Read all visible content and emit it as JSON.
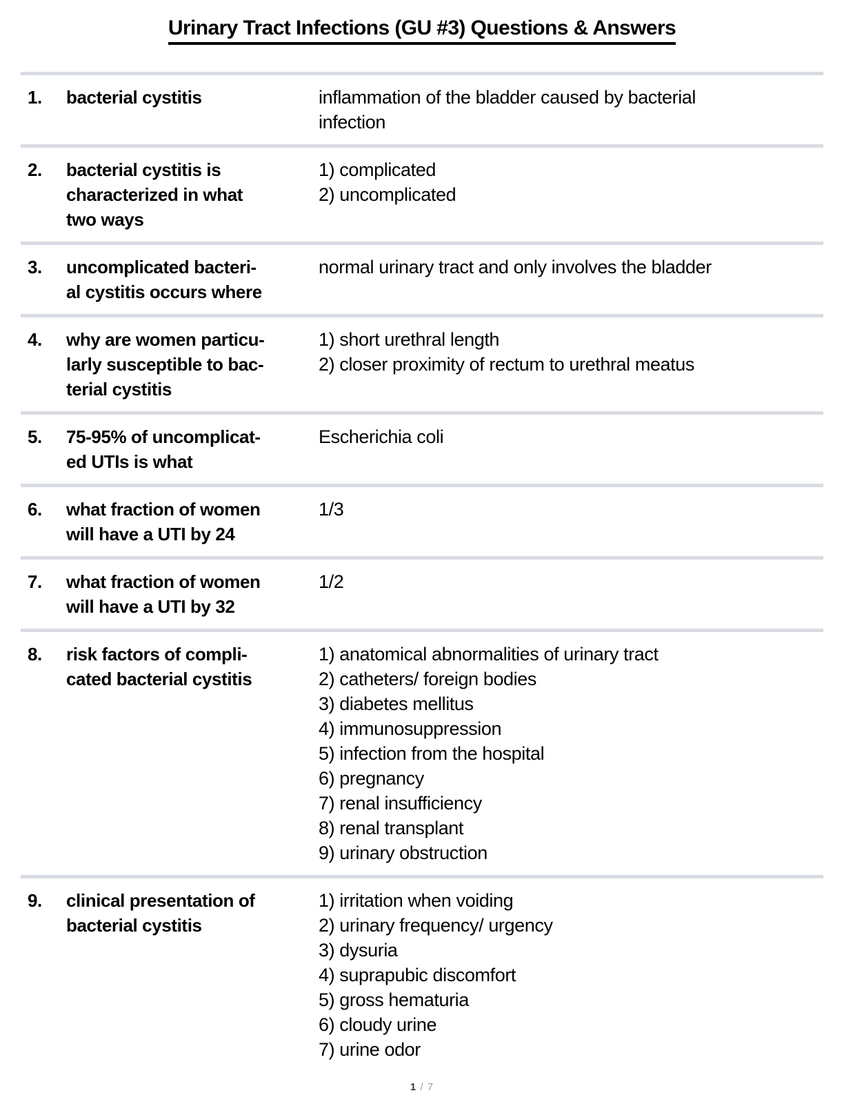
{
  "page": {
    "title": "Urinary Tract Infections (GU #3) Questions & Answers",
    "footer": {
      "page_number": "1",
      "page_total": " / 7"
    }
  },
  "qa": {
    "rows": [
      {
        "num": "1.",
        "question": "bacterial cystitis",
        "answer": "inflammation of the bladder caused by bacterial\ninfection"
      },
      {
        "num": "2.",
        "question": "bacterial cystitis is\ncharacterized in what\ntwo ways",
        "answer": "1) complicated\n2) uncomplicated"
      },
      {
        "num": "3.",
        "question": "uncomplicated bacteri-\nal cystitis occurs where",
        "answer": "normal urinary tract and only involves the bladder"
      },
      {
        "num": "4.",
        "question": "why are women particu-\nlarly susceptible to bac-\nterial cystitis",
        "answer": "1) short urethral length\n2) closer proximity of rectum to urethral meatus"
      },
      {
        "num": "5.",
        "question": "75-95% of uncomplicat-\ned UTIs is what",
        "answer": "Escherichia coli"
      },
      {
        "num": "6.",
        "question": "what fraction of women\nwill have a UTI by 24",
        "answer": "1/3"
      },
      {
        "num": "7.",
        "question": "what fraction of women\nwill have a UTI by 32",
        "answer": "1/2"
      },
      {
        "num": "8.",
        "question": "risk factors of compli-\ncated bacterial cystitis",
        "answer": "1) anatomical abnormalities of urinary tract\n2) catheters/ foreign bodies\n3) diabetes mellitus\n4) immunosuppression\n5) infection from the hospital\n6) pregnancy\n7) renal insufficiency\n8) renal transplant\n9) urinary obstruction"
      },
      {
        "num": "9.",
        "question": "clinical presentation of\nbacterial cystitis",
        "answer": "1) irritation when voiding\n2) urinary frequency/ urgency\n3) dysuria\n4) suprapubic discomfort\n5) gross hematuria\n6) cloudy urine\n7) urine odor"
      }
    ]
  },
  "colors": {
    "divider": "#d8dbe2",
    "text": "#000000",
    "footer_muted": "#999999",
    "footer_dark": "#3c3c3c"
  }
}
